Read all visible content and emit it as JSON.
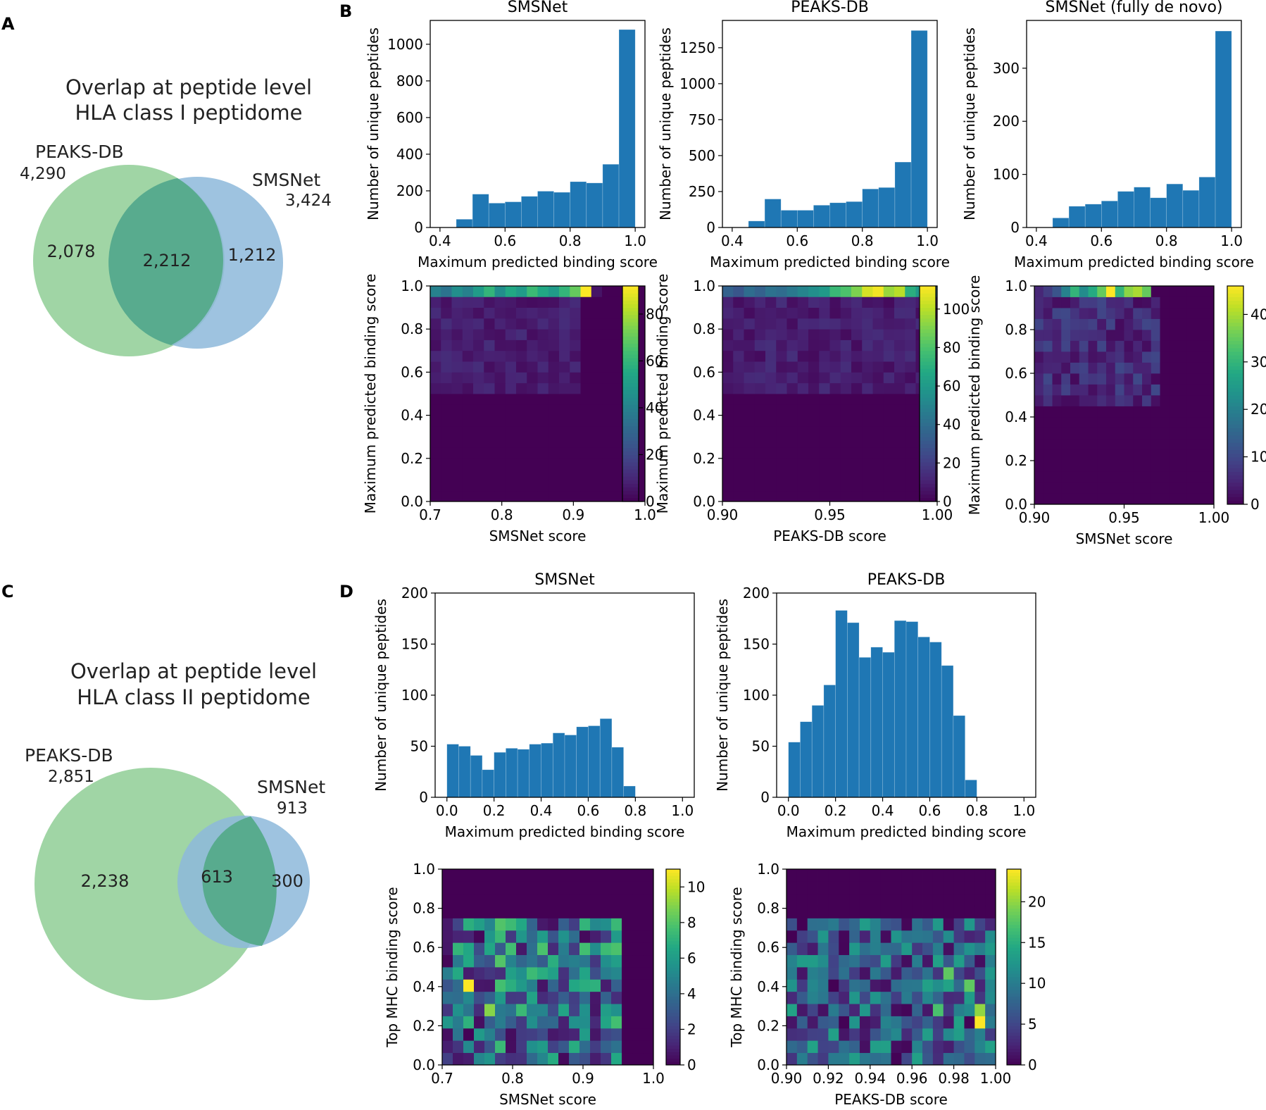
{
  "panels": {
    "A": {
      "letter": "A",
      "title_line1": "Overlap at peptide level",
      "title_line2": "HLA class I peptidome",
      "left_label": "PEAKS-DB",
      "left_total": "4,290",
      "right_label": "SMSNet",
      "right_total": "3,424",
      "left_only": "2,078",
      "overlap": "2,212",
      "right_only": "1,212"
    },
    "B": {
      "letter": "B"
    },
    "C": {
      "letter": "C",
      "title_line1": "Overlap at peptide level",
      "title_line2": "HLA class II peptidome",
      "left_label": "PEAKS-DB",
      "left_total": "2,851",
      "right_label": "SMSNet",
      "right_total": "913",
      "left_only": "2,238",
      "overlap": "613",
      "right_only": "300"
    },
    "D": {
      "letter": "D"
    }
  },
  "colors": {
    "venn_left": "#8fce95",
    "venn_right": "#8db8db",
    "venn_overlap": "#58ab8e",
    "bar": "#1f77b4"
  },
  "chart_data": [
    {
      "id": "B1_hist",
      "type": "bar",
      "title": "SMSNet",
      "xlabel": "Maximum predicted binding score",
      "ylabel": "Number of unique peptides",
      "xlim": [
        0.37,
        1.03
      ],
      "ylim": [
        0,
        1130
      ],
      "xticks": [
        0.4,
        0.6,
        0.8,
        1.0
      ],
      "xtick_labels": [
        "0.4",
        "0.6",
        "0.8",
        "1.0"
      ],
      "yticks": [
        0,
        200,
        400,
        600,
        800,
        1000
      ],
      "ytick_labels": [
        "0",
        "200",
        "400",
        "600",
        "800",
        "1000"
      ],
      "bin_edges": [
        0.45,
        0.5,
        0.55,
        0.6,
        0.65,
        0.7,
        0.75,
        0.8,
        0.85,
        0.9,
        0.95,
        1.0
      ],
      "values": [
        45,
        182,
        133,
        140,
        170,
        198,
        192,
        250,
        243,
        345,
        1080
      ]
    },
    {
      "id": "B2_hist",
      "type": "bar",
      "title": "PEAKS-DB",
      "xlabel": "Maximum predicted binding score",
      "ylabel": "Number of unique peptides",
      "xlim": [
        0.37,
        1.03
      ],
      "ylim": [
        0,
        1440
      ],
      "xticks": [
        0.4,
        0.6,
        0.8,
        1.0
      ],
      "xtick_labels": [
        "0.4",
        "0.6",
        "0.8",
        "1.0"
      ],
      "yticks": [
        0,
        250,
        500,
        750,
        1000,
        1250
      ],
      "ytick_labels": [
        "0",
        "250",
        "500",
        "750",
        "1000",
        "1250"
      ],
      "bin_edges": [
        0.45,
        0.5,
        0.55,
        0.6,
        0.65,
        0.7,
        0.75,
        0.8,
        0.85,
        0.9,
        0.95,
        1.0
      ],
      "values": [
        45,
        198,
        120,
        120,
        155,
        172,
        180,
        268,
        278,
        455,
        1370
      ]
    },
    {
      "id": "B3_hist",
      "type": "bar",
      "title": "SMSNet (fully de novo)",
      "xlabel": "Maximum predicted binding score",
      "ylabel": "Number of unique peptides",
      "xlim": [
        0.37,
        1.03
      ],
      "ylim": [
        0,
        390
      ],
      "xticks": [
        0.4,
        0.6,
        0.8,
        1.0
      ],
      "xtick_labels": [
        "0.4",
        "0.6",
        "0.8",
        "1.0"
      ],
      "yticks": [
        0,
        100,
        200,
        300
      ],
      "ytick_labels": [
        "0",
        "100",
        "200",
        "300"
      ],
      "bin_edges": [
        0.45,
        0.5,
        0.55,
        0.6,
        0.65,
        0.7,
        0.75,
        0.8,
        0.85,
        0.9,
        0.95,
        1.0
      ],
      "values": [
        18,
        40,
        44,
        50,
        68,
        76,
        56,
        82,
        70,
        95,
        370
      ]
    },
    {
      "id": "B1_heat",
      "type": "heatmap",
      "xlabel": "SMSNet score",
      "ylabel": "Maximum predicted binding score",
      "xlim": [
        0.7,
        1.0
      ],
      "ylim": [
        0,
        1.0
      ],
      "cols": 20,
      "rows": 20,
      "seed": 11,
      "xticks": [
        0.7,
        0.8,
        0.9,
        1.0
      ],
      "xtick_labels": [
        "0.7",
        "0.8",
        "0.9",
        "1.0"
      ],
      "yticks": [
        0,
        0.2,
        0.4,
        0.6,
        0.8,
        1.0
      ],
      "ytick_labels": [
        "0.0",
        "0.2",
        "0.4",
        "0.6",
        "0.8",
        "1.0"
      ],
      "vmax": 92,
      "cbar_ticks": [
        0,
        20,
        40,
        60,
        80
      ],
      "cbar_tick_labels": [
        "0",
        "20",
        "40",
        "60",
        "80"
      ],
      "active_cols": [
        0,
        13
      ],
      "row_span": [
        10,
        19
      ],
      "low": [
        3,
        12
      ],
      "top_row": [
        40,
        35,
        45,
        40,
        50,
        60,
        45,
        55,
        50,
        62,
        55,
        50,
        60,
        70,
        92,
        5,
        0,
        0,
        0,
        0
      ]
    },
    {
      "id": "B2_heat",
      "type": "heatmap",
      "xlabel": "PEAKS-DB score",
      "ylabel": "Maximum predicted binding score",
      "xlim": [
        0.9,
        1.0
      ],
      "ylim": [
        0,
        1.0
      ],
      "cols": 20,
      "rows": 20,
      "seed": 23,
      "xticks": [
        0.9,
        0.95,
        1.0
      ],
      "xtick_labels": [
        "0.90",
        "0.95",
        "1.00"
      ],
      "yticks": [
        0,
        0.2,
        0.4,
        0.6,
        0.8,
        1.0
      ],
      "ytick_labels": [
        "0.0",
        "0.2",
        "0.4",
        "0.6",
        "0.8",
        "1.0"
      ],
      "vmax": 112,
      "cbar_ticks": [
        0,
        20,
        40,
        60,
        80,
        100
      ],
      "cbar_tick_labels": [
        "0",
        "20",
        "40",
        "60",
        "80",
        "100"
      ],
      "active_cols": [
        0,
        19
      ],
      "row_span": [
        10,
        19
      ],
      "low": [
        3,
        15
      ],
      "top_row": [
        35,
        30,
        40,
        35,
        42,
        40,
        45,
        50,
        55,
        60,
        75,
        80,
        90,
        105,
        110,
        95,
        100,
        70,
        60,
        40
      ]
    },
    {
      "id": "B3_heat",
      "type": "heatmap",
      "xlabel": "SMSNet score",
      "ylabel": "Maximum predicted binding score",
      "xlim": [
        0.9,
        1.0
      ],
      "ylim": [
        0,
        1.0
      ],
      "cols": 20,
      "rows": 20,
      "seed": 37,
      "xticks": [
        0.9,
        0.95,
        1.0
      ],
      "xtick_labels": [
        "0.90",
        "0.95",
        "1.00"
      ],
      "yticks": [
        0,
        0.2,
        0.4,
        0.6,
        0.8,
        1.0
      ],
      "ytick_labels": [
        "0.0",
        "0.2",
        "0.4",
        "0.6",
        "0.8",
        "1.0"
      ],
      "vmax": 46,
      "cbar_ticks": [
        0,
        10,
        20,
        30,
        40
      ],
      "cbar_tick_labels": [
        "0",
        "10",
        "20",
        "30",
        "40"
      ],
      "active_cols": [
        0,
        13
      ],
      "row_span": [
        9,
        19
      ],
      "low": [
        1,
        10
      ],
      "top_row": [
        5,
        8,
        12,
        20,
        30,
        22,
        28,
        35,
        46,
        30,
        38,
        40,
        35,
        0,
        0,
        0,
        0,
        0,
        0,
        0
      ]
    },
    {
      "id": "D1_hist",
      "type": "bar",
      "title": "SMSNet",
      "xlabel": "Maximum predicted binding score",
      "ylabel": "Number of unique peptides",
      "xlim": [
        -0.05,
        1.05
      ],
      "ylim": [
        0,
        200
      ],
      "xticks": [
        0,
        0.2,
        0.4,
        0.6,
        0.8,
        1.0
      ],
      "xtick_labels": [
        "0.0",
        "0.2",
        "0.4",
        "0.6",
        "0.8",
        "1.0"
      ],
      "yticks": [
        0,
        50,
        100,
        150,
        200
      ],
      "ytick_labels": [
        "0",
        "50",
        "100",
        "150",
        "200"
      ],
      "bin_edges": [
        0.0,
        0.05,
        0.1,
        0.15,
        0.2,
        0.25,
        0.3,
        0.35,
        0.4,
        0.45,
        0.5,
        0.55,
        0.6,
        0.65,
        0.7,
        0.75,
        0.8
      ],
      "values": [
        52,
        50,
        41,
        27,
        44,
        48,
        47,
        52,
        53,
        63,
        61,
        69,
        70,
        77,
        49,
        11
      ]
    },
    {
      "id": "D2_hist",
      "type": "bar",
      "title": "PEAKS-DB",
      "xlabel": "Maximum predicted binding score",
      "ylabel": "Number of unique peptides",
      "xlim": [
        -0.05,
        1.05
      ],
      "ylim": [
        0,
        200
      ],
      "xticks": [
        0,
        0.2,
        0.4,
        0.6,
        0.8,
        1.0
      ],
      "xtick_labels": [
        "0.0",
        "0.2",
        "0.4",
        "0.6",
        "0.8",
        "1.0"
      ],
      "yticks": [
        0,
        50,
        100,
        150,
        200
      ],
      "ytick_labels": [
        "0",
        "50",
        "100",
        "150",
        "200"
      ],
      "bin_edges": [
        0.0,
        0.05,
        0.1,
        0.15,
        0.2,
        0.25,
        0.3,
        0.35,
        0.4,
        0.45,
        0.5,
        0.55,
        0.6,
        0.65,
        0.7,
        0.75,
        0.8
      ],
      "values": [
        54,
        74,
        90,
        110,
        183,
        171,
        137,
        147,
        142,
        173,
        172,
        157,
        152,
        129,
        80,
        17
      ]
    },
    {
      "id": "D1_heat",
      "type": "heatmap",
      "xlabel": "SMSNet score",
      "ylabel": "Top MHC binding score",
      "xlim": [
        0.7,
        1.0
      ],
      "ylim": [
        0,
        1.0
      ],
      "cols": 20,
      "rows": 16,
      "seed": 53,
      "xticks": [
        0.7,
        0.8,
        0.9,
        1.0
      ],
      "xtick_labels": [
        "0.7",
        "0.8",
        "0.9",
        "1.0"
      ],
      "yticks": [
        0,
        0.2,
        0.4,
        0.6,
        0.8,
        1.0
      ],
      "ytick_labels": [
        "0.0",
        "0.2",
        "0.4",
        "0.6",
        "0.8",
        "1.0"
      ],
      "vmax": 11,
      "cbar_ticks": [
        0,
        2,
        4,
        6,
        8,
        10
      ],
      "cbar_tick_labels": [
        "0",
        "2",
        "4",
        "6",
        "8",
        "10"
      ],
      "active_cols": [
        0,
        16
      ],
      "row_span": [
        0,
        11
      ],
      "low": [
        0,
        8
      ],
      "hot": [
        [
          2,
          6,
          11
        ],
        [
          5,
          8,
          8
        ],
        [
          4,
          4,
          9
        ]
      ]
    },
    {
      "id": "D2_heat",
      "type": "heatmap",
      "xlabel": "PEAKS-DB score",
      "ylabel": "Top MHC binding score",
      "xlim": [
        0.9,
        1.0
      ],
      "ylim": [
        0,
        1.0
      ],
      "cols": 20,
      "rows": 16,
      "seed": 71,
      "xticks": [
        0.9,
        0.92,
        0.94,
        0.96,
        0.98,
        1.0
      ],
      "xtick_labels": [
        "0.90",
        "0.92",
        "0.94",
        "0.96",
        "0.98",
        "1.00"
      ],
      "yticks": [
        0,
        0.2,
        0.4,
        0.6,
        0.8,
        1.0
      ],
      "ytick_labels": [
        "0.0",
        "0.2",
        "0.4",
        "0.6",
        "0.8",
        "1.0"
      ],
      "vmax": 24,
      "cbar_ticks": [
        0,
        5,
        10,
        15,
        20
      ],
      "cbar_tick_labels": [
        "0",
        "5",
        "10",
        "15",
        "20"
      ],
      "active_cols": [
        0,
        19
      ],
      "row_span": [
        0,
        11
      ],
      "low": [
        0,
        14
      ],
      "hot": [
        [
          18,
          3,
          24
        ],
        [
          18,
          4,
          20
        ],
        [
          15,
          7,
          18
        ],
        [
          17,
          6,
          18
        ],
        [
          14,
          4,
          17
        ]
      ]
    }
  ]
}
